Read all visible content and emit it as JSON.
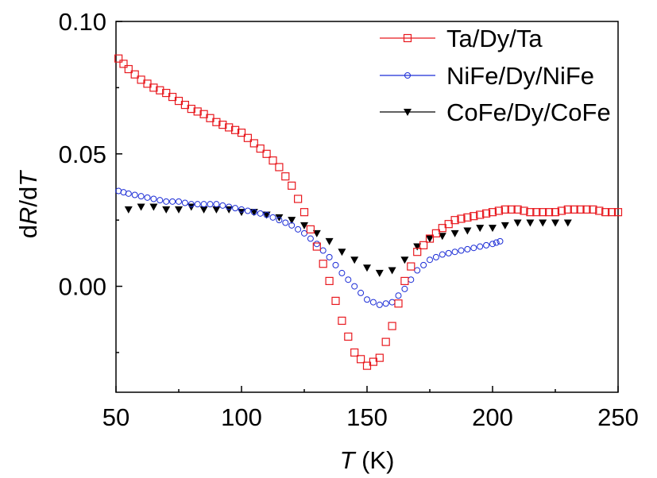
{
  "chart_data": {
    "type": "scatter",
    "title": "",
    "xlabel_var": "T",
    "xlabel_unit": " (K)",
    "ylabel_parts": [
      "d",
      "R",
      "/d",
      "T"
    ],
    "xlim": [
      50,
      250
    ],
    "ylim": [
      -0.04,
      0.1
    ],
    "x_ticks": [
      50,
      100,
      150,
      200,
      250
    ],
    "x_tick_labels": [
      "50",
      "100",
      "150",
      "200",
      "250"
    ],
    "y_ticks": [
      0.0,
      0.05,
      0.1
    ],
    "y_tick_labels": [
      "0.00",
      "0.05",
      "0.10"
    ],
    "grid": false,
    "legend_position": "top-right",
    "series": [
      {
        "name": "Ta/Dy/Ta",
        "color": "#e8191f",
        "marker": "open-square",
        "x": [
          51,
          55,
          60,
          65,
          70,
          75,
          80,
          85,
          90,
          95,
          100,
          105,
          110,
          115,
          120,
          125,
          130,
          135,
          140,
          145,
          150,
          155,
          160,
          165,
          170,
          175,
          180,
          185,
          190,
          195,
          200,
          205,
          210,
          215,
          220,
          225,
          230,
          235,
          240,
          245,
          250
        ],
        "y": [
          0.086,
          0.082,
          0.078,
          0.075,
          0.073,
          0.07,
          0.067,
          0.065,
          0.062,
          0.06,
          0.058,
          0.054,
          0.05,
          0.045,
          0.038,
          0.028,
          0.015,
          0.002,
          -0.013,
          -0.025,
          -0.03,
          -0.027,
          -0.015,
          0.002,
          0.013,
          0.018,
          0.022,
          0.025,
          0.026,
          0.027,
          0.028,
          0.029,
          0.029,
          0.028,
          0.028,
          0.028,
          0.029,
          0.029,
          0.029,
          0.028,
          0.028
        ]
      },
      {
        "name": "NiFe/Dy/NiFe",
        "color": "#1c2dd6",
        "marker": "open-circle",
        "x": [
          51,
          55,
          60,
          65,
          70,
          75,
          80,
          85,
          90,
          95,
          100,
          105,
          110,
          115,
          120,
          125,
          130,
          135,
          140,
          145,
          150,
          155,
          160,
          165,
          170,
          175,
          180,
          185,
          190,
          195,
          200,
          203
        ],
        "y": [
          0.036,
          0.035,
          0.034,
          0.033,
          0.032,
          0.032,
          0.031,
          0.031,
          0.031,
          0.03,
          0.029,
          0.028,
          0.027,
          0.025,
          0.023,
          0.02,
          0.016,
          0.011,
          0.005,
          0.0,
          -0.005,
          -0.007,
          -0.006,
          -0.001,
          0.006,
          0.01,
          0.012,
          0.013,
          0.014,
          0.015,
          0.016,
          0.017
        ]
      },
      {
        "name": "CoFe/Dy/CoFe",
        "color": "#000000",
        "marker": "filled-triangle-down",
        "x": [
          55,
          60,
          65,
          70,
          75,
          80,
          85,
          90,
          95,
          100,
          105,
          110,
          115,
          120,
          125,
          130,
          135,
          140,
          145,
          150,
          155,
          160,
          165,
          170,
          175,
          180,
          185,
          190,
          195,
          200,
          205,
          210,
          215,
          220,
          225,
          230
        ],
        "y": [
          0.029,
          0.03,
          0.03,
          0.029,
          0.029,
          0.03,
          0.029,
          0.029,
          0.029,
          0.028,
          0.028,
          0.027,
          0.026,
          0.025,
          0.023,
          0.02,
          0.017,
          0.013,
          0.01,
          0.007,
          0.005,
          0.006,
          0.01,
          0.015,
          0.018,
          0.019,
          0.02,
          0.021,
          0.022,
          0.022,
          0.023,
          0.024,
          0.024,
          0.024,
          0.024,
          0.024
        ]
      }
    ]
  }
}
